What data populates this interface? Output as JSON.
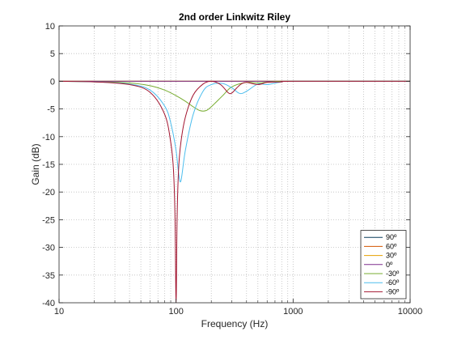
{
  "chart_data": {
    "type": "line",
    "title": "2nd order Linkwitz Riley",
    "xlabel": "Frequency (Hz)",
    "ylabel": "Gain (dB)",
    "xscale": "log",
    "xlim": [
      10,
      10000
    ],
    "ylim": [
      -40,
      10
    ],
    "xticks": [
      10,
      100,
      1000,
      10000
    ],
    "xtick_labels": [
      "10",
      "100",
      "1000",
      "10000"
    ],
    "yticks": [
      10,
      5,
      0,
      -5,
      -10,
      -15,
      -20,
      -25,
      -30,
      -35,
      -40
    ],
    "ytick_labels": [
      "10",
      "5",
      "0",
      "-5",
      "-10",
      "-15",
      "-20",
      "-25",
      "-30",
      "-35",
      "-40"
    ],
    "grid": "dotted",
    "legend_position": "bottom-right",
    "series": [
      {
        "name": "90º",
        "color": "#0b3d5c",
        "x": [
          10,
          10000
        ],
        "y": [
          0,
          0
        ]
      },
      {
        "name": "60º",
        "color": "#d35400",
        "x": [
          10,
          10000
        ],
        "y": [
          0,
          0
        ]
      },
      {
        "name": "30º",
        "color": "#e6a100",
        "x": [
          10,
          10000
        ],
        "y": [
          0,
          0
        ]
      },
      {
        "name": "0º",
        "color": "#7e2f8e",
        "x": [
          10,
          10000
        ],
        "y": [
          0,
          0
        ]
      },
      {
        "name": "-30º",
        "color": "#77ac30",
        "x": [
          10,
          20,
          40,
          60,
          80,
          100,
          120,
          140,
          160,
          180,
          200,
          250,
          300,
          400,
          500,
          700,
          1000,
          10000
        ],
        "y": [
          0,
          -0.1,
          -0.3,
          -0.8,
          -1.6,
          -2.6,
          -3.6,
          -4.6,
          -5.3,
          -5.3,
          -4.6,
          -2.6,
          -1.0,
          -0.2,
          -0.3,
          -0.05,
          0,
          0
        ]
      },
      {
        "name": "-60º",
        "color": "#4dbeee",
        "x": [
          10,
          20,
          40,
          60,
          80,
          90,
          100,
          105,
          110,
          120,
          140,
          170,
          200,
          250,
          300,
          350,
          400,
          500,
          600,
          800,
          1000,
          10000
        ],
        "y": [
          0,
          -0.1,
          -0.5,
          -1.6,
          -4.5,
          -7.5,
          -12.5,
          -16.5,
          -18.0,
          -12.5,
          -6.0,
          -1.8,
          -0.6,
          -0.4,
          -1.2,
          -2.2,
          -1.8,
          -0.5,
          -0.6,
          -0.1,
          0,
          0
        ]
      },
      {
        "name": "-90º",
        "color": "#a2142f",
        "x": [
          10,
          20,
          40,
          60,
          80,
          90,
          95,
          98,
          100,
          102,
          105,
          110,
          120,
          140,
          170,
          200,
          240,
          280,
          300,
          330,
          360,
          400,
          500,
          600,
          800,
          1000,
          10000
        ],
        "y": [
          0,
          -0.1,
          -0.6,
          -2.0,
          -6.0,
          -11.0,
          -16.0,
          -25.0,
          -40.0,
          -25.0,
          -16.0,
          -11.0,
          -6.5,
          -2.5,
          -0.5,
          0,
          -0.6,
          -2.1,
          -2.1,
          -1.2,
          -0.5,
          -0.2,
          -0.6,
          -0.2,
          -0.1,
          0,
          0
        ]
      }
    ]
  }
}
